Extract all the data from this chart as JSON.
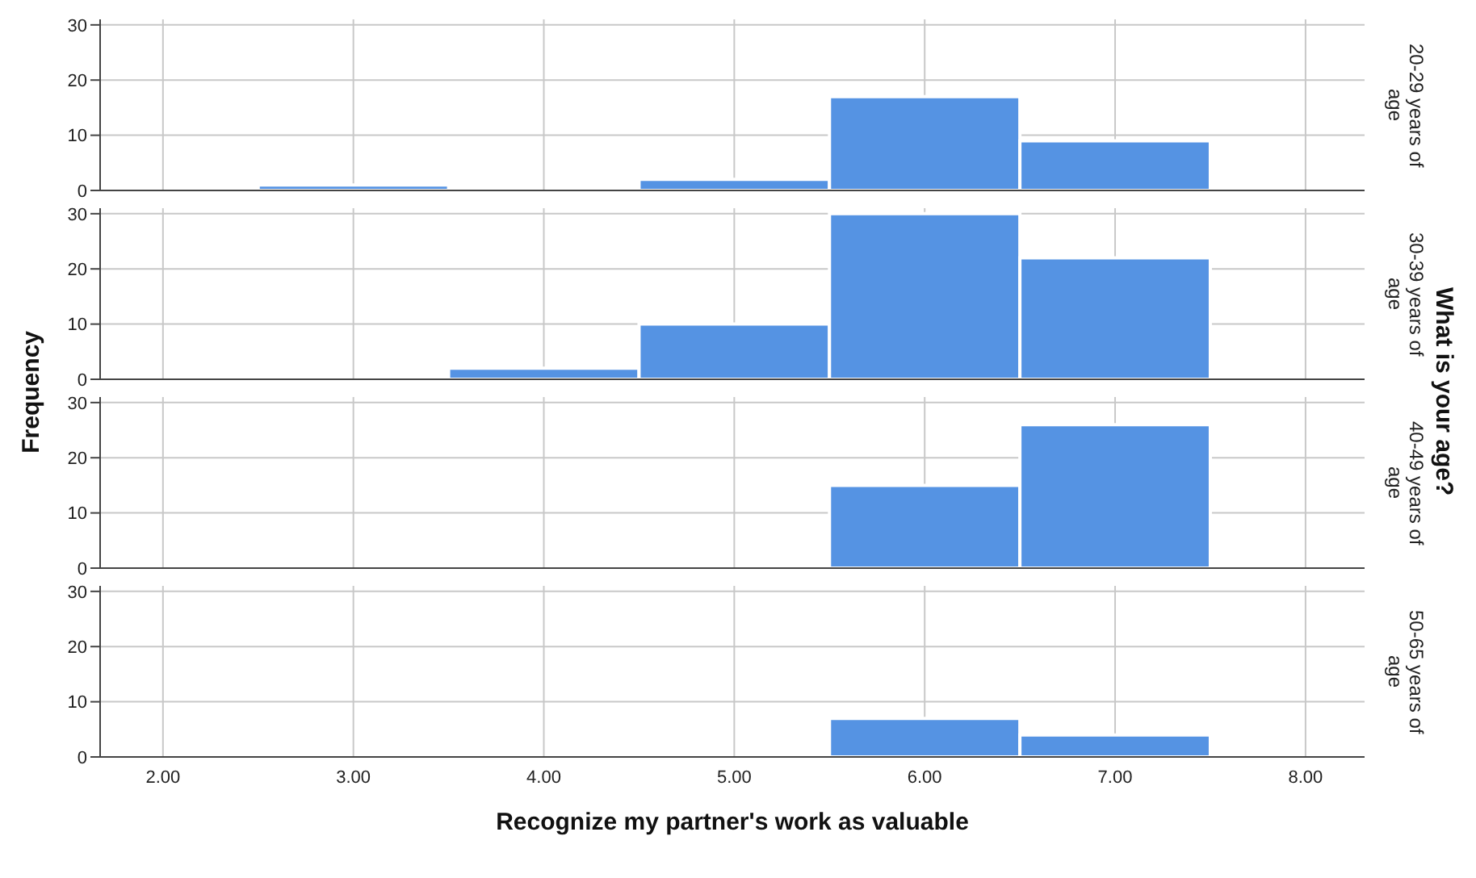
{
  "chart_data": [
    {
      "type": "histogram",
      "y2label": "20-29 years of age",
      "ylabel": "Frequency",
      "annotations": [
        "What is your age?"
      ],
      "bins": [
        2.5,
        3.5,
        4.5,
        5.5,
        6.5,
        7.5
      ],
      "values": [
        1,
        0,
        2,
        17,
        9
      ],
      "color": "#5593e3",
      "xlim": [
        1.67,
        8.31
      ],
      "xticks": [
        {
          "value": 2,
          "label": null
        },
        {
          "value": 3,
          "label": null
        },
        {
          "value": 4,
          "label": null
        },
        {
          "value": 5,
          "label": null
        },
        {
          "value": 6,
          "label": null
        },
        {
          "value": 7,
          "label": null
        },
        {
          "value": 8,
          "label": null
        }
      ],
      "ylim": [
        0,
        31
      ],
      "yticks": [
        0,
        10,
        20,
        30
      ],
      "grid": true,
      "tick_labels": "y"
    },
    {
      "type": "histogram",
      "y2label": "30-39 years of age",
      "bins": [
        2.5,
        3.5,
        4.5,
        5.5,
        6.5,
        7.5
      ],
      "values": [
        0,
        2,
        10,
        30,
        22
      ],
      "color": "#5593e3",
      "xlim": [
        1.67,
        8.31
      ],
      "xticks": [
        {
          "value": 2,
          "label": null
        },
        {
          "value": 3,
          "label": null
        },
        {
          "value": 4,
          "label": null
        },
        {
          "value": 5,
          "label": null
        },
        {
          "value": 6,
          "label": null
        },
        {
          "value": 7,
          "label": null
        },
        {
          "value": 8,
          "label": null
        }
      ],
      "ylim": [
        0,
        31
      ],
      "yticks": [
        0,
        10,
        20,
        30
      ],
      "grid": true,
      "tick_labels": "y"
    },
    {
      "type": "histogram",
      "y2label": "40-49 years of age",
      "bins": [
        2.5,
        3.5,
        4.5,
        5.5,
        6.5,
        7.5
      ],
      "values": [
        0,
        0,
        0,
        15,
        26
      ],
      "color": "#5593e3",
      "xlim": [
        1.67,
        8.31
      ],
      "xticks": [
        {
          "value": 2,
          "label": null
        },
        {
          "value": 3,
          "label": null
        },
        {
          "value": 4,
          "label": null
        },
        {
          "value": 5,
          "label": null
        },
        {
          "value": 6,
          "label": null
        },
        {
          "value": 7,
          "label": null
        },
        {
          "value": 8,
          "label": null
        }
      ],
      "ylim": [
        0,
        31
      ],
      "yticks": [
        0,
        10,
        20,
        30
      ],
      "grid": true,
      "tick_labels": "y"
    },
    {
      "type": "histogram",
      "y2label": "50-65 years of age",
      "xlabel": "Recognize my partner's work as valuable",
      "bins": [
        2.5,
        3.5,
        4.5,
        5.5,
        6.5,
        7.5
      ],
      "values": [
        0,
        0,
        0,
        7,
        4
      ],
      "color": "#5593e3",
      "xlim": [
        1.67,
        8.31
      ],
      "xticks": [
        {
          "value": 2,
          "label": "2.00"
        },
        {
          "value": 3,
          "label": "3.00"
        },
        {
          "value": 4,
          "label": "4.00"
        },
        {
          "value": 5,
          "label": "5.00"
        },
        {
          "value": 6,
          "label": "6.00"
        },
        {
          "value": 7,
          "label": "7.00"
        },
        {
          "value": 8,
          "label": "8.00"
        }
      ],
      "ylim": [
        0,
        31
      ],
      "yticks": [
        0,
        10,
        20,
        30
      ],
      "grid": true
    }
  ]
}
